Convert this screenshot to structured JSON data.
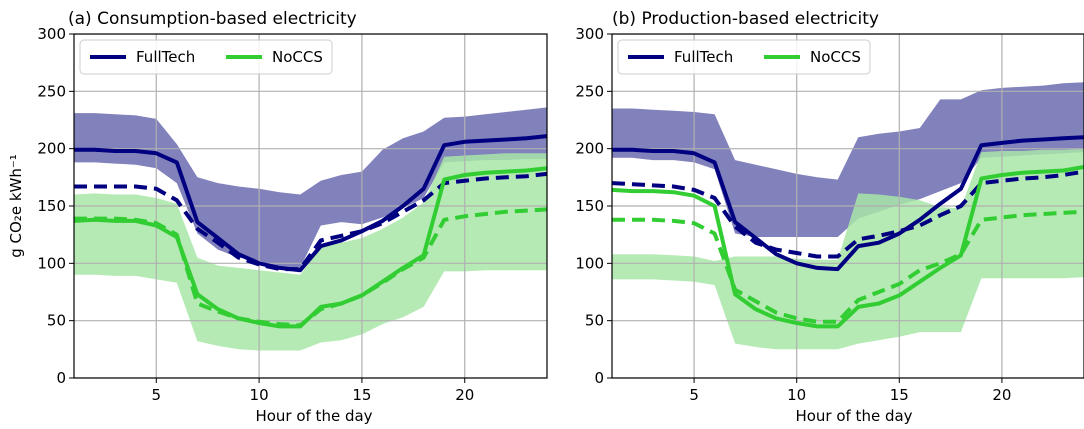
{
  "chart_data": [
    {
      "type": "line",
      "title": "(a) Consumption-based electricity",
      "xlabel": "Hour of the day",
      "ylabel": "g CO₂e kWh⁻¹",
      "xlim": [
        1,
        24
      ],
      "ylim": [
        0,
        300
      ],
      "xticks": [
        5,
        10,
        15,
        20
      ],
      "yticks": [
        0,
        50,
        100,
        150,
        200,
        250,
        300
      ],
      "grid": true,
      "legend_position": "top-left",
      "x": [
        1,
        2,
        3,
        4,
        5,
        6,
        7,
        8,
        9,
        10,
        11,
        12,
        13,
        14,
        15,
        16,
        17,
        18,
        19,
        20,
        21,
        22,
        23,
        24
      ],
      "series": [
        {
          "name": "FullTech",
          "style": "solid",
          "color": "#000080",
          "values": [
            199,
            199,
            198,
            198,
            196,
            188,
            136,
            122,
            108,
            100,
            96,
            94,
            115,
            120,
            128,
            137,
            150,
            165,
            203,
            206,
            207,
            208,
            209,
            211
          ]
        },
        {
          "name": "",
          "style": "dashed",
          "color": "#000080",
          "values": [
            167,
            167,
            167,
            167,
            165,
            155,
            130,
            118,
            105,
            99,
            95,
            95,
            120,
            124,
            128,
            135,
            145,
            155,
            170,
            172,
            174,
            175,
            176,
            178
          ]
        },
        {
          "name": "NoCCS",
          "style": "solid",
          "color": "#32cd32",
          "values": [
            137,
            138,
            137,
            137,
            133,
            123,
            73,
            60,
            52,
            48,
            45,
            45,
            62,
            65,
            72,
            84,
            96,
            107,
            173,
            177,
            179,
            180,
            181,
            183
          ]
        },
        {
          "name": "",
          "style": "dashed",
          "color": "#32cd32",
          "values": [
            139,
            139,
            139,
            138,
            135,
            125,
            65,
            58,
            52,
            49,
            47,
            46,
            60,
            65,
            72,
            83,
            95,
            105,
            138,
            141,
            143,
            145,
            146,
            147
          ]
        }
      ],
      "bands": [
        {
          "name": "FullTech range",
          "color": "#7a7ab8",
          "upper": [
            231,
            231,
            230,
            229,
            226,
            204,
            175,
            170,
            167,
            165,
            162,
            160,
            172,
            177,
            180,
            199,
            209,
            215,
            227,
            228,
            230,
            232,
            234,
            236
          ],
          "lower": [
            188,
            188,
            187,
            186,
            183,
            170,
            126,
            112,
            105,
            102,
            97,
            96,
            133,
            136,
            134,
            140,
            148,
            157,
            188,
            189,
            190,
            190,
            191,
            191
          ]
        },
        {
          "name": "NoCCS range",
          "color": "#a8e6a8",
          "upper": [
            160,
            161,
            160,
            160,
            157,
            152,
            105,
            98,
            96,
            94,
            92,
            90,
            114,
            118,
            122,
            130,
            140,
            153,
            193,
            194,
            195,
            196,
            196,
            196
          ],
          "lower": [
            90,
            90,
            89,
            89,
            86,
            83,
            32,
            28,
            25,
            24,
            24,
            24,
            31,
            33,
            38,
            47,
            53,
            62,
            93,
            93,
            94,
            94,
            94,
            94
          ]
        }
      ]
    },
    {
      "type": "line",
      "title": "(b) Production-based electricity",
      "xlabel": "Hour of the day",
      "ylabel": "",
      "xlim": [
        1,
        24
      ],
      "ylim": [
        0,
        300
      ],
      "xticks": [
        5,
        10,
        15,
        20
      ],
      "yticks": [
        0,
        50,
        100,
        150,
        200,
        250,
        300
      ],
      "grid": true,
      "legend_position": "top-left",
      "x": [
        1,
        2,
        3,
        4,
        5,
        6,
        7,
        8,
        9,
        10,
        11,
        12,
        13,
        14,
        15,
        16,
        17,
        18,
        19,
        20,
        21,
        22,
        23,
        24
      ],
      "series": [
        {
          "name": "FullTech",
          "style": "solid",
          "color": "#000080",
          "values": [
            199,
            199,
            198,
            198,
            196,
            188,
            136,
            122,
            108,
            100,
            96,
            95,
            115,
            118,
            126,
            138,
            152,
            165,
            203,
            205,
            207,
            208,
            209,
            210
          ]
        },
        {
          "name": "",
          "style": "dashed",
          "color": "#000080",
          "values": [
            170,
            169,
            168,
            167,
            164,
            157,
            132,
            118,
            112,
            109,
            106,
            106,
            121,
            124,
            128,
            133,
            142,
            150,
            170,
            172,
            174,
            175,
            177,
            180
          ]
        },
        {
          "name": "NoCCS",
          "style": "solid",
          "color": "#32cd32",
          "values": [
            164,
            163,
            163,
            162,
            159,
            150,
            73,
            60,
            52,
            48,
            45,
            45,
            62,
            65,
            72,
            84,
            96,
            107,
            174,
            177,
            179,
            180,
            181,
            184
          ]
        },
        {
          "name": "",
          "style": "dashed",
          "color": "#32cd32",
          "values": [
            138,
            138,
            138,
            137,
            135,
            126,
            77,
            67,
            57,
            52,
            49,
            49,
            68,
            75,
            82,
            94,
            100,
            108,
            138,
            140,
            142,
            143,
            144,
            145
          ]
        }
      ],
      "bands": [
        {
          "name": "FullTech range",
          "color": "#7a7ab8",
          "upper": [
            235,
            235,
            234,
            233,
            232,
            230,
            190,
            186,
            182,
            178,
            175,
            173,
            210,
            213,
            215,
            218,
            243,
            243,
            251,
            253,
            254,
            255,
            257,
            258
          ],
          "lower": [
            192,
            192,
            190,
            190,
            188,
            182,
            126,
            123,
            123,
            123,
            123,
            123,
            139,
            145,
            151,
            156,
            163,
            170,
            192,
            193,
            194,
            195,
            196,
            197
          ]
        },
        {
          "name": "NoCCS range",
          "color": "#a8e6a8",
          "upper": [
            108,
            108,
            108,
            107,
            106,
            102,
            106,
            106,
            106,
            104,
            103,
            103,
            161,
            160,
            158,
            155,
            149,
            148,
            197,
            198,
            198,
            199,
            199,
            200
          ],
          "lower": [
            86,
            86,
            86,
            85,
            84,
            81,
            30,
            27,
            25,
            25,
            25,
            25,
            30,
            33,
            36,
            40,
            40,
            40,
            87,
            87,
            87,
            87,
            87,
            88
          ]
        }
      ]
    }
  ]
}
